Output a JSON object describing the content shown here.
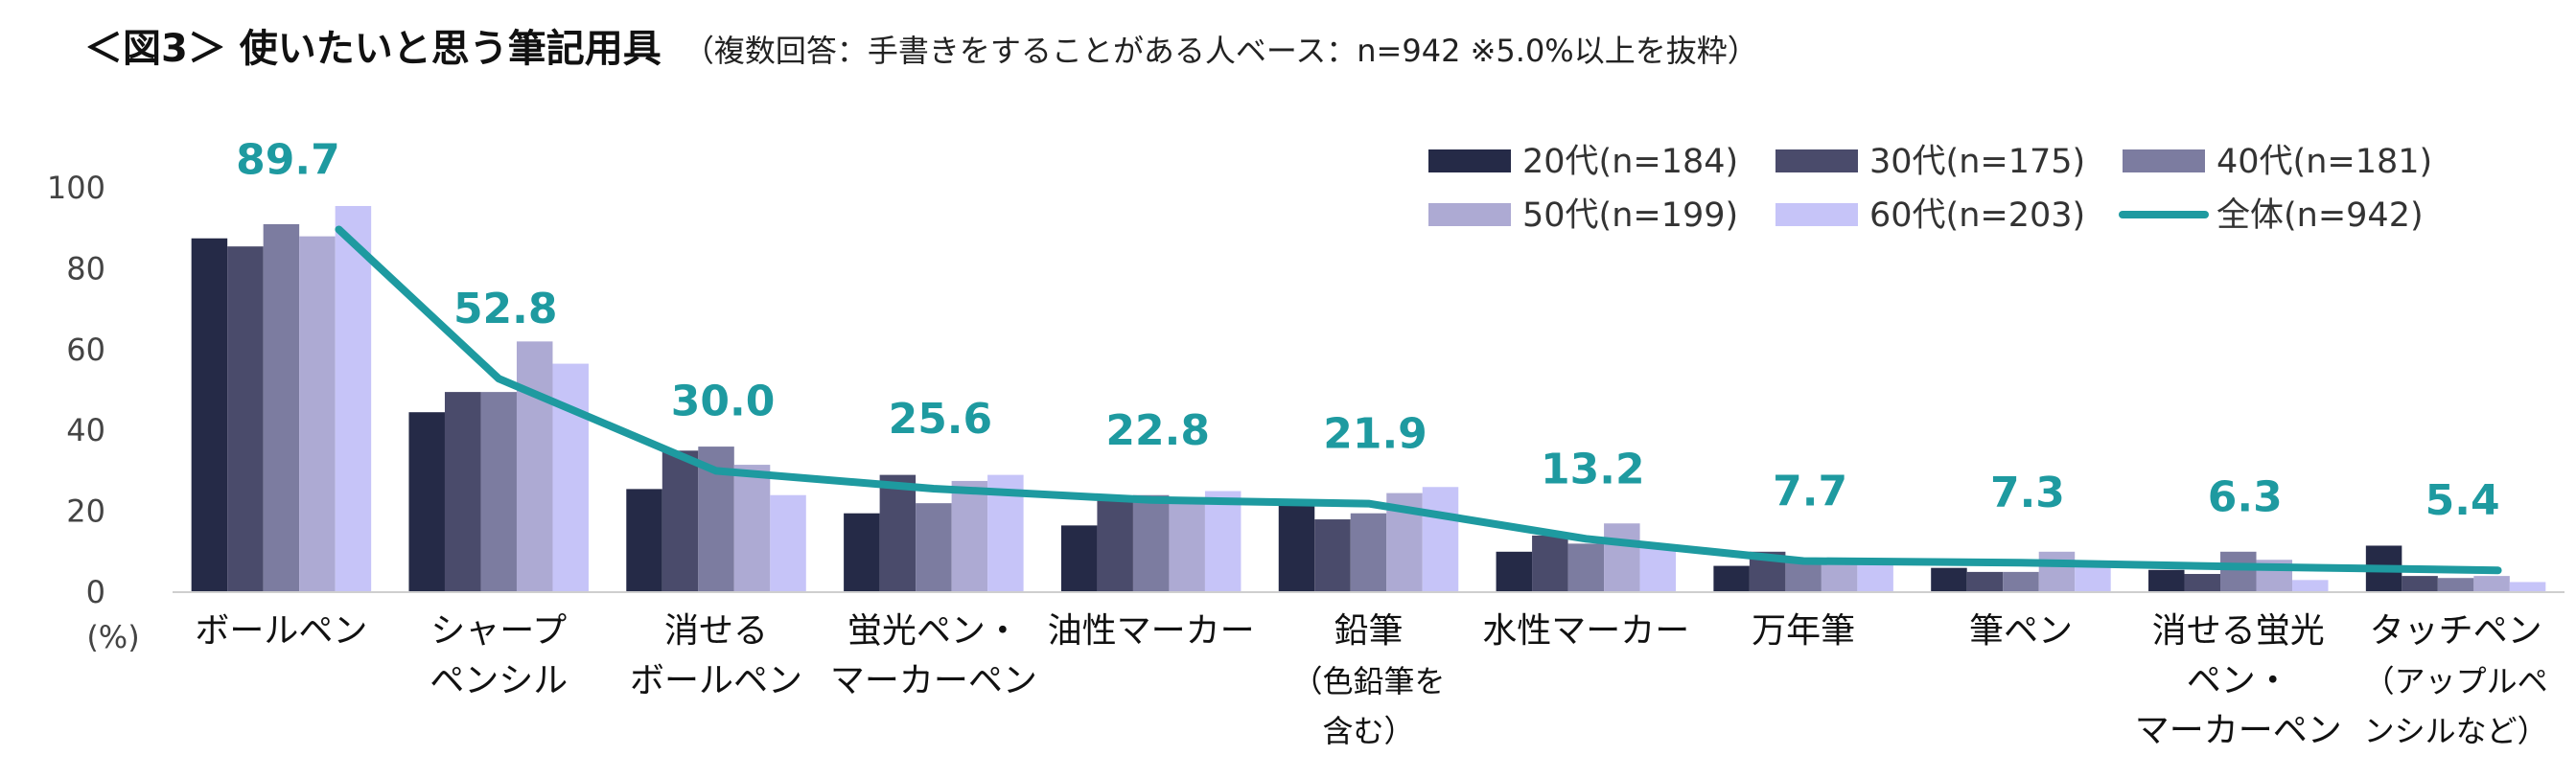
{
  "title": "＜図3＞ 使いたいと思う筆記用具",
  "subtitle": "（複数回答：手書きをすることがある人ベース：n=942 ※5.0%以上を抜粋）",
  "chart_data": {
    "type": "bar",
    "title": "＜図3＞ 使いたいと思う筆記用具",
    "ylabel": "(%)",
    "ylim": [
      0,
      100
    ],
    "yticks": [
      "0",
      "20",
      "40",
      "60",
      "80",
      "100"
    ],
    "categories": [
      [
        "ボールペン"
      ],
      [
        "シャープ",
        "ペンシル"
      ],
      [
        "消せる",
        "ボールペン"
      ],
      [
        "蛍光ペン・",
        "マーカーペン"
      ],
      [
        "油性マーカー"
      ],
      [
        "鉛筆",
        "（色鉛筆を",
        "含む）"
      ],
      [
        "水性マーカー"
      ],
      [
        "万年筆"
      ],
      [
        "筆ペン"
      ],
      [
        "消せる蛍光",
        "ペン・",
        "マーカーペン"
      ],
      [
        "タッチペン",
        "（アップルペ",
        "ンシルなど）"
      ]
    ],
    "series": [
      {
        "name": "20代(n=184)",
        "color": "#252a47",
        "values": [
          87.5,
          44.5,
          25.5,
          19.5,
          16.5,
          21.5,
          10.0,
          6.5,
          6.0,
          5.5,
          11.5
        ]
      },
      {
        "name": "30代(n=175)",
        "color": "#4a4b6b",
        "values": [
          85.5,
          49.5,
          35.0,
          29.0,
          23.0,
          18.0,
          14.0,
          10.0,
          5.0,
          4.5,
          4.0
        ]
      },
      {
        "name": "40代(n=181)",
        "color": "#7c7ca0",
        "values": [
          91.0,
          49.5,
          36.0,
          22.0,
          24.0,
          19.5,
          12.0,
          7.5,
          5.0,
          10.0,
          3.5
        ]
      },
      {
        "name": "50代(n=199)",
        "color": "#adaad3",
        "values": [
          88.0,
          62.0,
          31.5,
          27.5,
          23.5,
          24.5,
          17.0,
          7.5,
          10.0,
          8.0,
          4.0
        ]
      },
      {
        "name": "60代(n=203)",
        "color": "#c6c4f8",
        "values": [
          95.5,
          56.5,
          24.0,
          29.0,
          25.0,
          26.0,
          11.5,
          7.5,
          7.5,
          3.0,
          2.5
        ]
      }
    ],
    "line": {
      "name": "全体(n=942)",
      "color": "#1e9aa0",
      "values": [
        89.7,
        52.8,
        30.0,
        25.6,
        22.8,
        21.9,
        13.2,
        7.7,
        7.3,
        6.3,
        5.4
      ]
    },
    "total_labels": [
      "89.7",
      "52.8",
      "30.0",
      "25.6",
      "22.8",
      "21.9",
      "13.2",
      "7.7",
      "7.3",
      "6.3",
      "5.4"
    ],
    "legend": [
      "20代(n=184)",
      "30代(n=175)",
      "40代(n=181)",
      "50代(n=199)",
      "60代(n=203)",
      "全体(n=942)"
    ],
    "legend_position": "top-right"
  }
}
